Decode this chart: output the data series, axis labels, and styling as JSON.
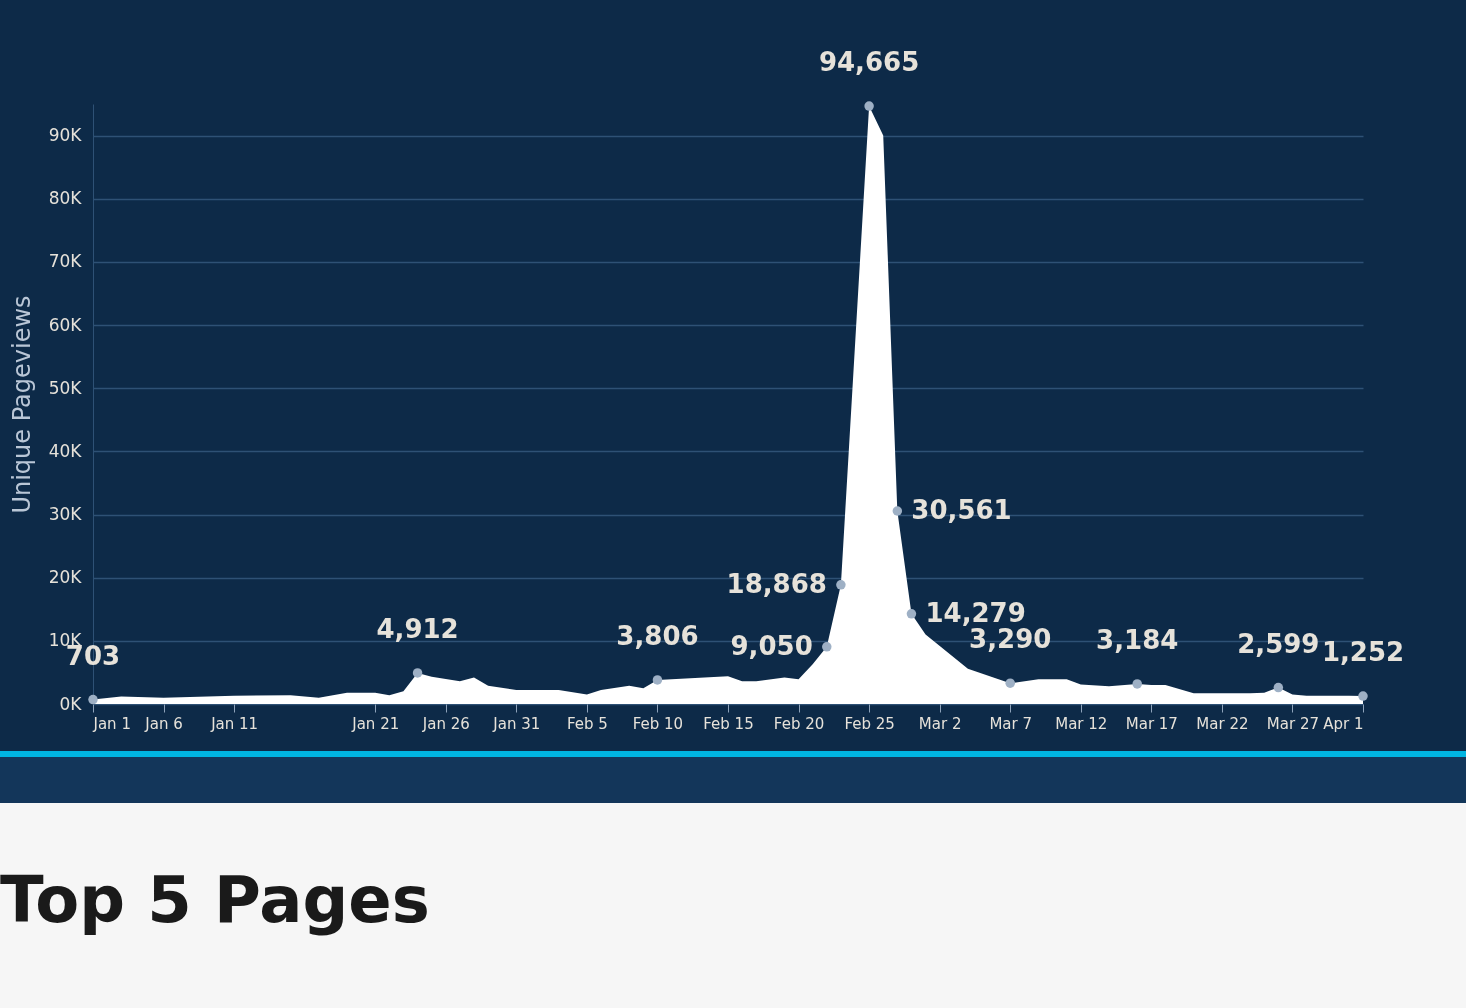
{
  "chart_data": {
    "type": "area",
    "ylabel": "Unique Pageviews",
    "color": "#ffffff",
    "x": [
      "--01-01",
      "--01-03",
      "--01-06",
      "--01-11",
      "--01-15",
      "--01-17",
      "--01-19",
      "--01-21",
      "--01-22",
      "--01-23",
      "--01-24",
      "--01-25",
      "--01-27",
      "--01-28",
      "--01-29",
      "--01-31",
      "--02-03",
      "--02-05",
      "--02-06",
      "--02-08",
      "--02-09",
      "--02-10",
      "--02-15",
      "--02-16",
      "--02-17",
      "--02-19",
      "--02-20",
      "--02-21",
      "--02-22",
      "--02-23",
      "--02-25",
      "--02-26",
      "--02-27",
      "--02-28",
      "--03-01",
      "--03-04",
      "--03-07",
      "--03-09",
      "--03-11",
      "--03-12",
      "--03-14",
      "--03-16",
      "--03-17",
      "--03-18",
      "--03-20",
      "--03-24",
      "--03-25",
      "--03-26",
      "--03-27",
      "--03-28",
      "--03-31",
      "--04-01"
    ],
    "values": [
      703,
      1200,
      1000,
      1300,
      1400,
      1000,
      1800,
      1800,
      1400,
      2000,
      4912,
      4300,
      3600,
      4200,
      2900,
      2200,
      2200,
      1500,
      2200,
      2900,
      2500,
      3806,
      4400,
      3600,
      3600,
      4200,
      3900,
      6300,
      9050,
      18868,
      94665,
      90000,
      30561,
      14279,
      11000,
      5600,
      3290,
      3900,
      3900,
      3100,
      2800,
      3184,
      3000,
      3000,
      1700,
      1700,
      1800,
      2599,
      1500,
      1300,
      1300,
      1252
    ],
    "value_labels": [
      "703",
      null,
      null,
      null,
      null,
      null,
      null,
      null,
      null,
      null,
      "4,912",
      null,
      null,
      null,
      null,
      null,
      null,
      null,
      null,
      null,
      null,
      "3,806",
      null,
      null,
      null,
      null,
      null,
      null,
      "9,050",
      "18,868",
      "94,665",
      null,
      "30,561",
      "14,279",
      null,
      null,
      "3,290",
      null,
      null,
      null,
      null,
      "3,184",
      null,
      null,
      null,
      null,
      null,
      "2,599",
      null,
      null,
      null,
      "1,252"
    ],
    "grid": "y",
    "ylim": [
      0,
      95000
    ],
    "yticks": [
      {
        "value": 0,
        "label": "0K"
      },
      {
        "value": 10000,
        "label": "10K"
      },
      {
        "value": 20000,
        "label": "20K"
      },
      {
        "value": 30000,
        "label": "30K"
      },
      {
        "value": 40000,
        "label": "40K"
      },
      {
        "value": 50000,
        "label": "50K"
      },
      {
        "value": 60000,
        "label": "60K"
      },
      {
        "value": 70000,
        "label": "70K"
      },
      {
        "value": 80000,
        "label": "80K"
      },
      {
        "value": 90000,
        "label": "90K"
      }
    ],
    "xlim": [
      "--01-01",
      "--04-01"
    ],
    "xticks": [
      {
        "value": "--01-01",
        "label": "Jan 1"
      },
      {
        "value": "--01-06",
        "label": "Jan 6"
      },
      {
        "value": "--01-11",
        "label": "Jan 11"
      },
      {
        "value": "--01-21",
        "label": "Jan 21"
      },
      {
        "value": "--01-26",
        "label": "Jan 26"
      },
      {
        "value": "--01-31",
        "label": "Jan 31"
      },
      {
        "value": "--02-05",
        "label": "Feb 5"
      },
      {
        "value": "--02-10",
        "label": "Feb 10"
      },
      {
        "value": "--02-15",
        "label": "Feb 15"
      },
      {
        "value": "--02-20",
        "label": "Feb 20"
      },
      {
        "value": "--02-25",
        "label": "Feb 25"
      },
      {
        "value": "--03-02",
        "label": "Mar 2"
      },
      {
        "value": "--03-07",
        "label": "Mar 7"
      },
      {
        "value": "--03-12",
        "label": "Mar 12"
      },
      {
        "value": "--03-17",
        "label": "Mar 17"
      },
      {
        "value": "--03-22",
        "label": "Mar 22"
      },
      {
        "value": "--03-27",
        "label": "Mar 27"
      },
      {
        "value": "--04-01",
        "label": "Apr 1"
      }
    ],
    "annotations": [
      "Top 5 Pages"
    ]
  }
}
